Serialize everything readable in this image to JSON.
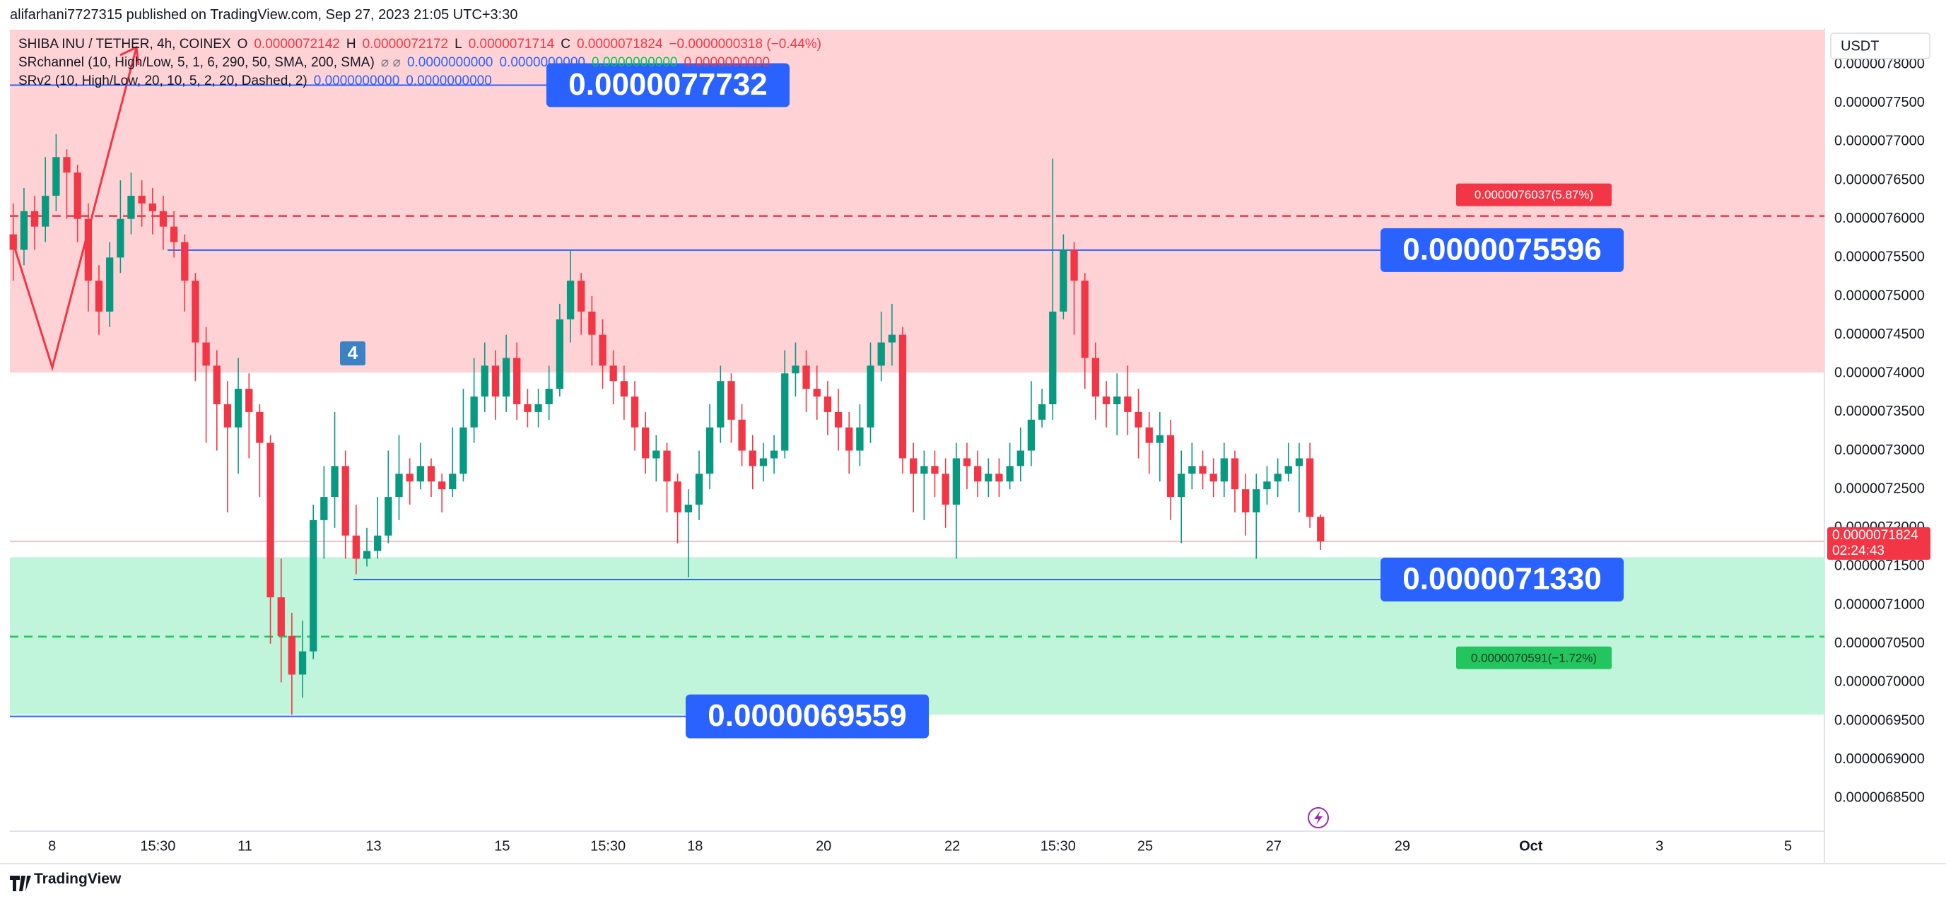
{
  "header": "alifarhani7727315 published on TradingView.com, Sep 27, 2023 21:05 UTC+3:30",
  "footer": "TradingView",
  "chart_data": {
    "type": "candlestick",
    "currency": "USDT",
    "badge": "4",
    "legend": [
      [
        {
          "text": "SHIBA INU / TETHER, 4h, COINEX",
          "color": "#131722"
        },
        {
          "text": "O",
          "color": "#131722"
        },
        {
          "text": "0.0000072142",
          "color": "#f23645"
        },
        {
          "text": "H",
          "color": "#131722"
        },
        {
          "text": "0.0000072172",
          "color": "#f23645"
        },
        {
          "text": "L",
          "color": "#131722"
        },
        {
          "text": "0.0000071714",
          "color": "#f23645"
        },
        {
          "text": "C",
          "color": "#131722"
        },
        {
          "text": "0.0000071824",
          "color": "#f23645"
        },
        {
          "text": "−0.0000000318 (−0.44%)",
          "color": "#f23645"
        }
      ],
      [
        {
          "text": "SRchannel (10, High/Low, 5, 1, 6, 290, 50, SMA, 200, SMA)",
          "color": "#131722"
        },
        {
          "text": "⌀ ⌀",
          "color": "#787b86"
        },
        {
          "text": "0.0000000000",
          "color": "#2962ff"
        },
        {
          "text": "0.0000000000",
          "color": "#2962ff"
        },
        {
          "text": "0.0000000000",
          "color": "#00c853"
        },
        {
          "text": "0.0000000000",
          "color": "#f23645"
        }
      ],
      [
        {
          "text": "SRv2 (10, High/Low, 20, 10, 5, 2, 20, Dashed, 2)",
          "color": "#131722"
        },
        {
          "text": "0.0000000000",
          "color": "#2962ff"
        },
        {
          "text": "0.0000000000",
          "color": "#2962ff"
        }
      ]
    ],
    "x": [
      7.396,
      7.563,
      7.729,
      7.896,
      8.063,
      8.229,
      8.396,
      8.563,
      8.729,
      8.896,
      9.063,
      9.229,
      9.396,
      9.563,
      9.729,
      9.896,
      10.063,
      10.229,
      10.396,
      10.563,
      10.729,
      10.896,
      11.063,
      11.229,
      11.396,
      11.563,
      11.729,
      11.896,
      12.063,
      12.229,
      12.396,
      12.563,
      12.729,
      12.896,
      13.063,
      13.229,
      13.396,
      13.563,
      13.729,
      13.896,
      14.063,
      14.229,
      14.396,
      14.563,
      14.729,
      14.896,
      15.063,
      15.229,
      15.396,
      15.563,
      15.729,
      15.896,
      16.063,
      16.229,
      16.396,
      16.563,
      16.729,
      16.896,
      17.063,
      17.229,
      17.396,
      17.563,
      17.729,
      17.896,
      18.063,
      18.229,
      18.396,
      18.563,
      18.729,
      18.896,
      19.063,
      19.229,
      19.396,
      19.563,
      19.729,
      19.896,
      20.063,
      20.229,
      20.396,
      20.563,
      20.729,
      20.896,
      21.063,
      21.229,
      21.396,
      21.563,
      21.729,
      21.896,
      22.063,
      22.229,
      22.396,
      22.563,
      22.729,
      22.896,
      23.063,
      23.229,
      23.396,
      23.563,
      23.729,
      23.896,
      24.063,
      24.229,
      24.396,
      24.563,
      24.729,
      24.896,
      25.063,
      25.229,
      25.396,
      25.563,
      25.729,
      25.896,
      26.063,
      26.229,
      26.396,
      26.563,
      26.729,
      26.896,
      27.063,
      27.229,
      27.396,
      27.563,
      27.729
    ],
    "open": [
      7.58e-06,
      7.56e-06,
      7.61e-06,
      7.59e-06,
      7.63e-06,
      7.68e-06,
      7.66e-06,
      7.6e-06,
      7.52e-06,
      7.48e-06,
      7.55e-06,
      7.6e-06,
      7.63e-06,
      7.62e-06,
      7.61e-06,
      7.59e-06,
      7.57e-06,
      7.52e-06,
      7.44e-06,
      7.41e-06,
      7.36e-06,
      7.33e-06,
      7.38e-06,
      7.35e-06,
      7.31e-06,
      7.11e-06,
      7.06e-06,
      7.01e-06,
      7.04e-06,
      7.21e-06,
      7.24e-06,
      7.28e-06,
      7.19e-06,
      7.16e-06,
      7.17e-06,
      7.19e-06,
      7.24e-06,
      7.27e-06,
      7.26e-06,
      7.28e-06,
      7.26e-06,
      7.25e-06,
      7.27e-06,
      7.33e-06,
      7.37e-06,
      7.41e-06,
      7.37e-06,
      7.42e-06,
      7.36e-06,
      7.35e-06,
      7.36e-06,
      7.38e-06,
      7.47e-06,
      7.52e-06,
      7.48e-06,
      7.45e-06,
      7.41e-06,
      7.39e-06,
      7.37e-06,
      7.33e-06,
      7.29e-06,
      7.3e-06,
      7.26e-06,
      7.22e-06,
      7.23e-06,
      7.27e-06,
      7.33e-06,
      7.39e-06,
      7.34e-06,
      7.3e-06,
      7.28e-06,
      7.29e-06,
      7.3e-06,
      7.4e-06,
      7.41e-06,
      7.38e-06,
      7.37e-06,
      7.35e-06,
      7.33e-06,
      7.3e-06,
      7.33e-06,
      7.41e-06,
      7.44e-06,
      7.45e-06,
      7.29e-06,
      7.27e-06,
      7.28e-06,
      7.27e-06,
      7.23e-06,
      7.29e-06,
      7.28e-06,
      7.26e-06,
      7.27e-06,
      7.26e-06,
      7.28e-06,
      7.3e-06,
      7.34e-06,
      7.36e-06,
      7.48e-06,
      7.56e-06,
      7.52e-06,
      7.42e-06,
      7.37e-06,
      7.36e-06,
      7.37e-06,
      7.35e-06,
      7.33e-06,
      7.31e-06,
      7.32e-06,
      7.24e-06,
      7.27e-06,
      7.28e-06,
      7.27e-06,
      7.26e-06,
      7.29e-06,
      7.25e-06,
      7.22e-06,
      7.25e-06,
      7.26e-06,
      7.27e-06,
      7.28e-06,
      7.29e-06,
      7.2142e-06
    ],
    "high": [
      7.62e-06,
      7.64e-06,
      7.63e-06,
      7.68e-06,
      7.71e-06,
      7.69e-06,
      7.67e-06,
      7.62e-06,
      7.54e-06,
      7.57e-06,
      7.65e-06,
      7.66e-06,
      7.65e-06,
      7.64e-06,
      7.63e-06,
      7.61e-06,
      7.58e-06,
      7.53e-06,
      7.46e-06,
      7.43e-06,
      7.39e-06,
      7.42e-06,
      7.4e-06,
      7.36e-06,
      7.32e-06,
      7.16e-06,
      7.09e-06,
      7.08e-06,
      7.23e-06,
      7.28e-06,
      7.35e-06,
      7.3e-06,
      7.23e-06,
      7.2e-06,
      7.24e-06,
      7.3e-06,
      7.32e-06,
      7.29e-06,
      7.31e-06,
      7.29e-06,
      7.27e-06,
      7.33e-06,
      7.38e-06,
      7.42e-06,
      7.44e-06,
      7.43e-06,
      7.45e-06,
      7.44e-06,
      7.38e-06,
      7.38e-06,
      7.41e-06,
      7.49e-06,
      7.56e-06,
      7.53e-06,
      7.5e-06,
      7.47e-06,
      7.43e-06,
      7.41e-06,
      7.39e-06,
      7.35e-06,
      7.32e-06,
      7.31e-06,
      7.27e-06,
      7.25e-06,
      7.3e-06,
      7.36e-06,
      7.41e-06,
      7.4e-06,
      7.36e-06,
      7.32e-06,
      7.31e-06,
      7.32e-06,
      7.43e-06,
      7.44e-06,
      7.43e-06,
      7.41e-06,
      7.39e-06,
      7.38e-06,
      7.35e-06,
      7.36e-06,
      7.44e-06,
      7.48e-06,
      7.49e-06,
      7.46e-06,
      7.31e-06,
      7.3e-06,
      7.3e-06,
      7.29e-06,
      7.31e-06,
      7.31e-06,
      7.3e-06,
      7.29e-06,
      7.29e-06,
      7.31e-06,
      7.33e-06,
      7.39e-06,
      7.38e-06,
      7.678e-06,
      7.58e-06,
      7.57e-06,
      7.53e-06,
      7.44e-06,
      7.39e-06,
      7.4e-06,
      7.41e-06,
      7.38e-06,
      7.35e-06,
      7.35e-06,
      7.34e-06,
      7.3e-06,
      7.31e-06,
      7.3e-06,
      7.29e-06,
      7.31e-06,
      7.3e-06,
      7.27e-06,
      7.27e-06,
      7.28e-06,
      7.29e-06,
      7.31e-06,
      7.31e-06,
      7.31e-06,
      7.2172e-06
    ],
    "low": [
      7.52e-06,
      7.54e-06,
      7.56e-06,
      7.57e-06,
      7.61e-06,
      7.6e-06,
      7.57e-06,
      7.48e-06,
      7.45e-06,
      7.46e-06,
      7.53e-06,
      7.58e-06,
      7.59e-06,
      7.58e-06,
      7.56e-06,
      7.55e-06,
      7.48e-06,
      7.39e-06,
      7.31e-06,
      7.3e-06,
      7.22e-06,
      7.27e-06,
      7.29e-06,
      7.24e-06,
      7.05e-06,
      7e-06,
      6.958e-06,
      6.98e-06,
      7.03e-06,
      7.16e-06,
      7.2e-06,
      7.16e-06,
      7.14e-06,
      7.15e-06,
      7.16e-06,
      7.18e-06,
      7.21e-06,
      7.23e-06,
      7.25e-06,
      7.24e-06,
      7.22e-06,
      7.24e-06,
      7.26e-06,
      7.31e-06,
      7.35e-06,
      7.34e-06,
      7.35e-06,
      7.34e-06,
      7.33e-06,
      7.33e-06,
      7.34e-06,
      7.37e-06,
      7.44e-06,
      7.45e-06,
      7.41e-06,
      7.38e-06,
      7.36e-06,
      7.34e-06,
      7.3e-06,
      7.27e-06,
      7.26e-06,
      7.22e-06,
      7.18e-06,
      7.136e-06,
      7.21e-06,
      7.25e-06,
      7.31e-06,
      7.31e-06,
      7.28e-06,
      7.25e-06,
      7.26e-06,
      7.27e-06,
      7.29e-06,
      7.37e-06,
      7.35e-06,
      7.34e-06,
      7.32e-06,
      7.3e-06,
      7.27e-06,
      7.28e-06,
      7.31e-06,
      7.39e-06,
      7.41e-06,
      7.27e-06,
      7.22e-06,
      7.21e-06,
      7.24e-06,
      7.2e-06,
      7.16e-06,
      7.25e-06,
      7.24e-06,
      7.24e-06,
      7.24e-06,
      7.25e-06,
      7.26e-06,
      7.28e-06,
      7.33e-06,
      7.34e-06,
      7.47e-06,
      7.45e-06,
      7.38e-06,
      7.34e-06,
      7.33e-06,
      7.32e-06,
      7.32e-06,
      7.29e-06,
      7.27e-06,
      7.26e-06,
      7.21e-06,
      7.18e-06,
      7.25e-06,
      7.25e-06,
      7.24e-06,
      7.24e-06,
      7.22e-06,
      7.19e-06,
      7.16e-06,
      7.23e-06,
      7.24e-06,
      7.26e-06,
      7.22e-06,
      7.2e-06,
      7.1714e-06
    ],
    "close": [
      7.56e-06,
      7.61e-06,
      7.59e-06,
      7.63e-06,
      7.68e-06,
      7.66e-06,
      7.6e-06,
      7.52e-06,
      7.48e-06,
      7.55e-06,
      7.6e-06,
      7.63e-06,
      7.62e-06,
      7.61e-06,
      7.59e-06,
      7.57e-06,
      7.52e-06,
      7.44e-06,
      7.41e-06,
      7.36e-06,
      7.33e-06,
      7.38e-06,
      7.35e-06,
      7.31e-06,
      7.11e-06,
      7.06e-06,
      7.01e-06,
      7.04e-06,
      7.21e-06,
      7.24e-06,
      7.28e-06,
      7.19e-06,
      7.16e-06,
      7.17e-06,
      7.19e-06,
      7.24e-06,
      7.27e-06,
      7.26e-06,
      7.28e-06,
      7.26e-06,
      7.25e-06,
      7.27e-06,
      7.33e-06,
      7.37e-06,
      7.41e-06,
      7.37e-06,
      7.42e-06,
      7.36e-06,
      7.35e-06,
      7.36e-06,
      7.38e-06,
      7.47e-06,
      7.52e-06,
      7.48e-06,
      7.45e-06,
      7.41e-06,
      7.39e-06,
      7.37e-06,
      7.33e-06,
      7.29e-06,
      7.3e-06,
      7.26e-06,
      7.22e-06,
      7.23e-06,
      7.27e-06,
      7.33e-06,
      7.39e-06,
      7.34e-06,
      7.3e-06,
      7.28e-06,
      7.29e-06,
      7.3e-06,
      7.4e-06,
      7.41e-06,
      7.38e-06,
      7.37e-06,
      7.35e-06,
      7.33e-06,
      7.3e-06,
      7.33e-06,
      7.41e-06,
      7.44e-06,
      7.45e-06,
      7.29e-06,
      7.27e-06,
      7.28e-06,
      7.27e-06,
      7.23e-06,
      7.29e-06,
      7.28e-06,
      7.26e-06,
      7.27e-06,
      7.26e-06,
      7.28e-06,
      7.3e-06,
      7.34e-06,
      7.36e-06,
      7.48e-06,
      7.56e-06,
      7.52e-06,
      7.42e-06,
      7.37e-06,
      7.36e-06,
      7.37e-06,
      7.35e-06,
      7.33e-06,
      7.31e-06,
      7.32e-06,
      7.24e-06,
      7.27e-06,
      7.28e-06,
      7.27e-06,
      7.26e-06,
      7.29e-06,
      7.25e-06,
      7.22e-06,
      7.25e-06,
      7.26e-06,
      7.27e-06,
      7.28e-06,
      7.29e-06,
      7.2142e-06,
      7.1824e-06
    ],
    "up_color": "#089981",
    "down_color": "#f23645",
    "xlim": [
      7.344,
      35.565
    ],
    "xticks": [
      8,
      {
        "value": 9.646,
        "label": "15:30"
      },
      11,
      13,
      15,
      {
        "value": 16.646,
        "label": "15:30"
      },
      18,
      20,
      22,
      {
        "value": 23.646,
        "label": "15:30"
      },
      25,
      27,
      29,
      {
        "value": 31,
        "label": "Oct"
      },
      {
        "value": 33,
        "label": "3"
      },
      {
        "value": 35,
        "label": "5"
      }
    ],
    "ylim": [
      6.81e-06,
      7.845e-06
    ],
    "yticks": [
      {
        "value": 6.85e-06,
        "label": "0.0000068500"
      },
      {
        "value": 6.9e-06,
        "label": "0.0000069000"
      },
      {
        "value": 6.95e-06,
        "label": "0.0000069500"
      },
      {
        "value": 7e-06,
        "label": "0.0000070000"
      },
      {
        "value": 7.05e-06,
        "label": "0.0000070500"
      },
      {
        "value": 7.1e-06,
        "label": "0.0000071000"
      },
      {
        "value": 7.15e-06,
        "label": "0.0000071500"
      },
      {
        "value": 7.2e-06,
        "label": "0.0000072000"
      },
      {
        "value": 7.25e-06,
        "label": "0.0000072500"
      },
      {
        "value": 7.3e-06,
        "label": "0.0000073000"
      },
      {
        "value": 7.35e-06,
        "label": "0.0000073500"
      },
      {
        "value": 7.4e-06,
        "label": "0.0000074000"
      },
      {
        "value": 7.45e-06,
        "label": "0.0000074500"
      },
      {
        "value": 7.5e-06,
        "label": "0.0000075000"
      },
      {
        "value": 7.55e-06,
        "label": "0.0000075500"
      },
      {
        "value": 7.6e-06,
        "label": "0.0000076000"
      },
      {
        "value": 7.65e-06,
        "label": "0.0000076500"
      },
      {
        "value": 7.7e-06,
        "label": "0.0000077000"
      },
      {
        "value": 7.75e-06,
        "label": "0.0000077500"
      },
      {
        "value": 7.8e-06,
        "label": "0.0000078000"
      }
    ],
    "grid": false,
    "zones": [
      {
        "from": 7.678e-06,
        "to": 7.845e-06,
        "color": "#ffd3d5"
      },
      {
        "from": 7.401e-06,
        "to": 7.678e-06,
        "color": "#ffd3d5"
      },
      {
        "from": 6.958e-06,
        "to": 7.162e-06,
        "color": "#c0f5db"
      }
    ],
    "levels": [
      {
        "value": 7.7732e-06,
        "label": "0.0000077732"
      },
      {
        "value": 7.5596e-06,
        "label": "0.0000075596"
      },
      {
        "value": 7.133e-06,
        "label": "0.0000071330"
      },
      {
        "value": 6.9559e-06,
        "label": "0.0000069559"
      }
    ],
    "level_color": "#2962ff",
    "targets": [
      {
        "value": 7.6037e-06,
        "label": "0.0000076037(5.87%)",
        "color": "#f23645"
      },
      {
        "value": 7.0591e-06,
        "label": "0.0000070591(−1.72%)",
        "color": "#22c55e"
      }
    ],
    "last_price": {
      "label": "0.0000071824",
      "countdown": "02:24:43",
      "color": "#f23645"
    }
  }
}
